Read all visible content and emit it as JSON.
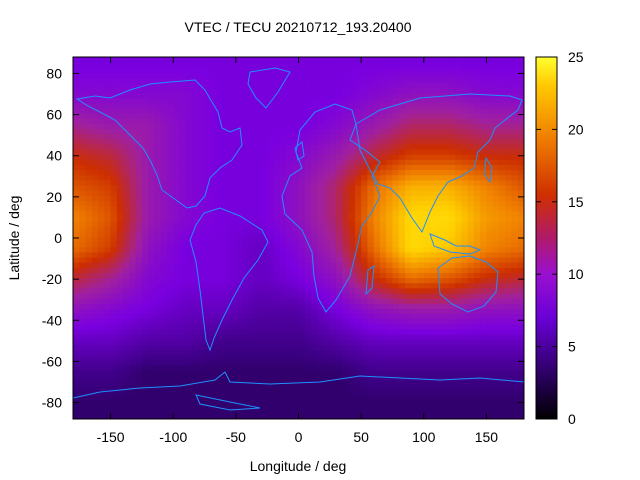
{
  "chart_data": {
    "type": "heatmap",
    "title": "VTEC / TECU 20210712_193.20400",
    "xlabel": "Longitude / deg",
    "ylabel": "Latitude / deg",
    "xlim": [
      -180,
      180
    ],
    "ylim": [
      -88,
      88
    ],
    "x_ticks": [
      -150,
      -100,
      -50,
      0,
      50,
      100,
      150
    ],
    "y_ticks": [
      -80,
      -60,
      -40,
      -20,
      0,
      20,
      40,
      60,
      80
    ],
    "colorbar": {
      "min": 0,
      "max": 25,
      "ticks": [
        0,
        5,
        10,
        15,
        20,
        25
      ]
    },
    "grid": false,
    "overlay": "coastlines",
    "coastline_color": "#1e90ff",
    "colormap": [
      "#000000",
      "#3a0080",
      "#7a00e0",
      "#a020a0",
      "#cc2e00",
      "#f08000",
      "#ffd000",
      "#ffff30"
    ],
    "sample_grid": {
      "lon": [
        -180,
        -150,
        -120,
        -90,
        -60,
        -30,
        0,
        30,
        60,
        90,
        120,
        150,
        180
      ],
      "lat": [
        85,
        70,
        55,
        40,
        25,
        10,
        -5,
        -20,
        -35,
        -50,
        -65,
        -80
      ],
      "vtec": [
        [
          7,
          7,
          7,
          7,
          7,
          7,
          7,
          7,
          7,
          7,
          7,
          7,
          7
        ],
        [
          8,
          8,
          8,
          8,
          7,
          7,
          7,
          7,
          8,
          9,
          9,
          8,
          8
        ],
        [
          11,
          10,
          10,
          8,
          7,
          7,
          7,
          8,
          10,
          12,
          12,
          11,
          11
        ],
        [
          14,
          13,
          10,
          8,
          7,
          7,
          8,
          10,
          13,
          15,
          15,
          14,
          14
        ],
        [
          16,
          15,
          10,
          8,
          7,
          7,
          9,
          12,
          17,
          20,
          20,
          18,
          16
        ],
        [
          18,
          16,
          10,
          8,
          7,
          7,
          9,
          12,
          18,
          22,
          22,
          19,
          18
        ],
        [
          17,
          15,
          9,
          7,
          7,
          6,
          8,
          11,
          17,
          22,
          21,
          18,
          17
        ],
        [
          13,
          11,
          8,
          7,
          7,
          6,
          7,
          9,
          14,
          17,
          16,
          14,
          13
        ],
        [
          9,
          8,
          7,
          6,
          6,
          5,
          5,
          7,
          9,
          10,
          10,
          9,
          9
        ],
        [
          6,
          6,
          5,
          5,
          4,
          4,
          4,
          5,
          6,
          6,
          6,
          6,
          6
        ],
        [
          4,
          4,
          3,
          3,
          3,
          3,
          3,
          3,
          4,
          4,
          4,
          4,
          4
        ],
        [
          3,
          3,
          3,
          3,
          3,
          3,
          3,
          3,
          3,
          3,
          3,
          3,
          3
        ]
      ]
    }
  }
}
